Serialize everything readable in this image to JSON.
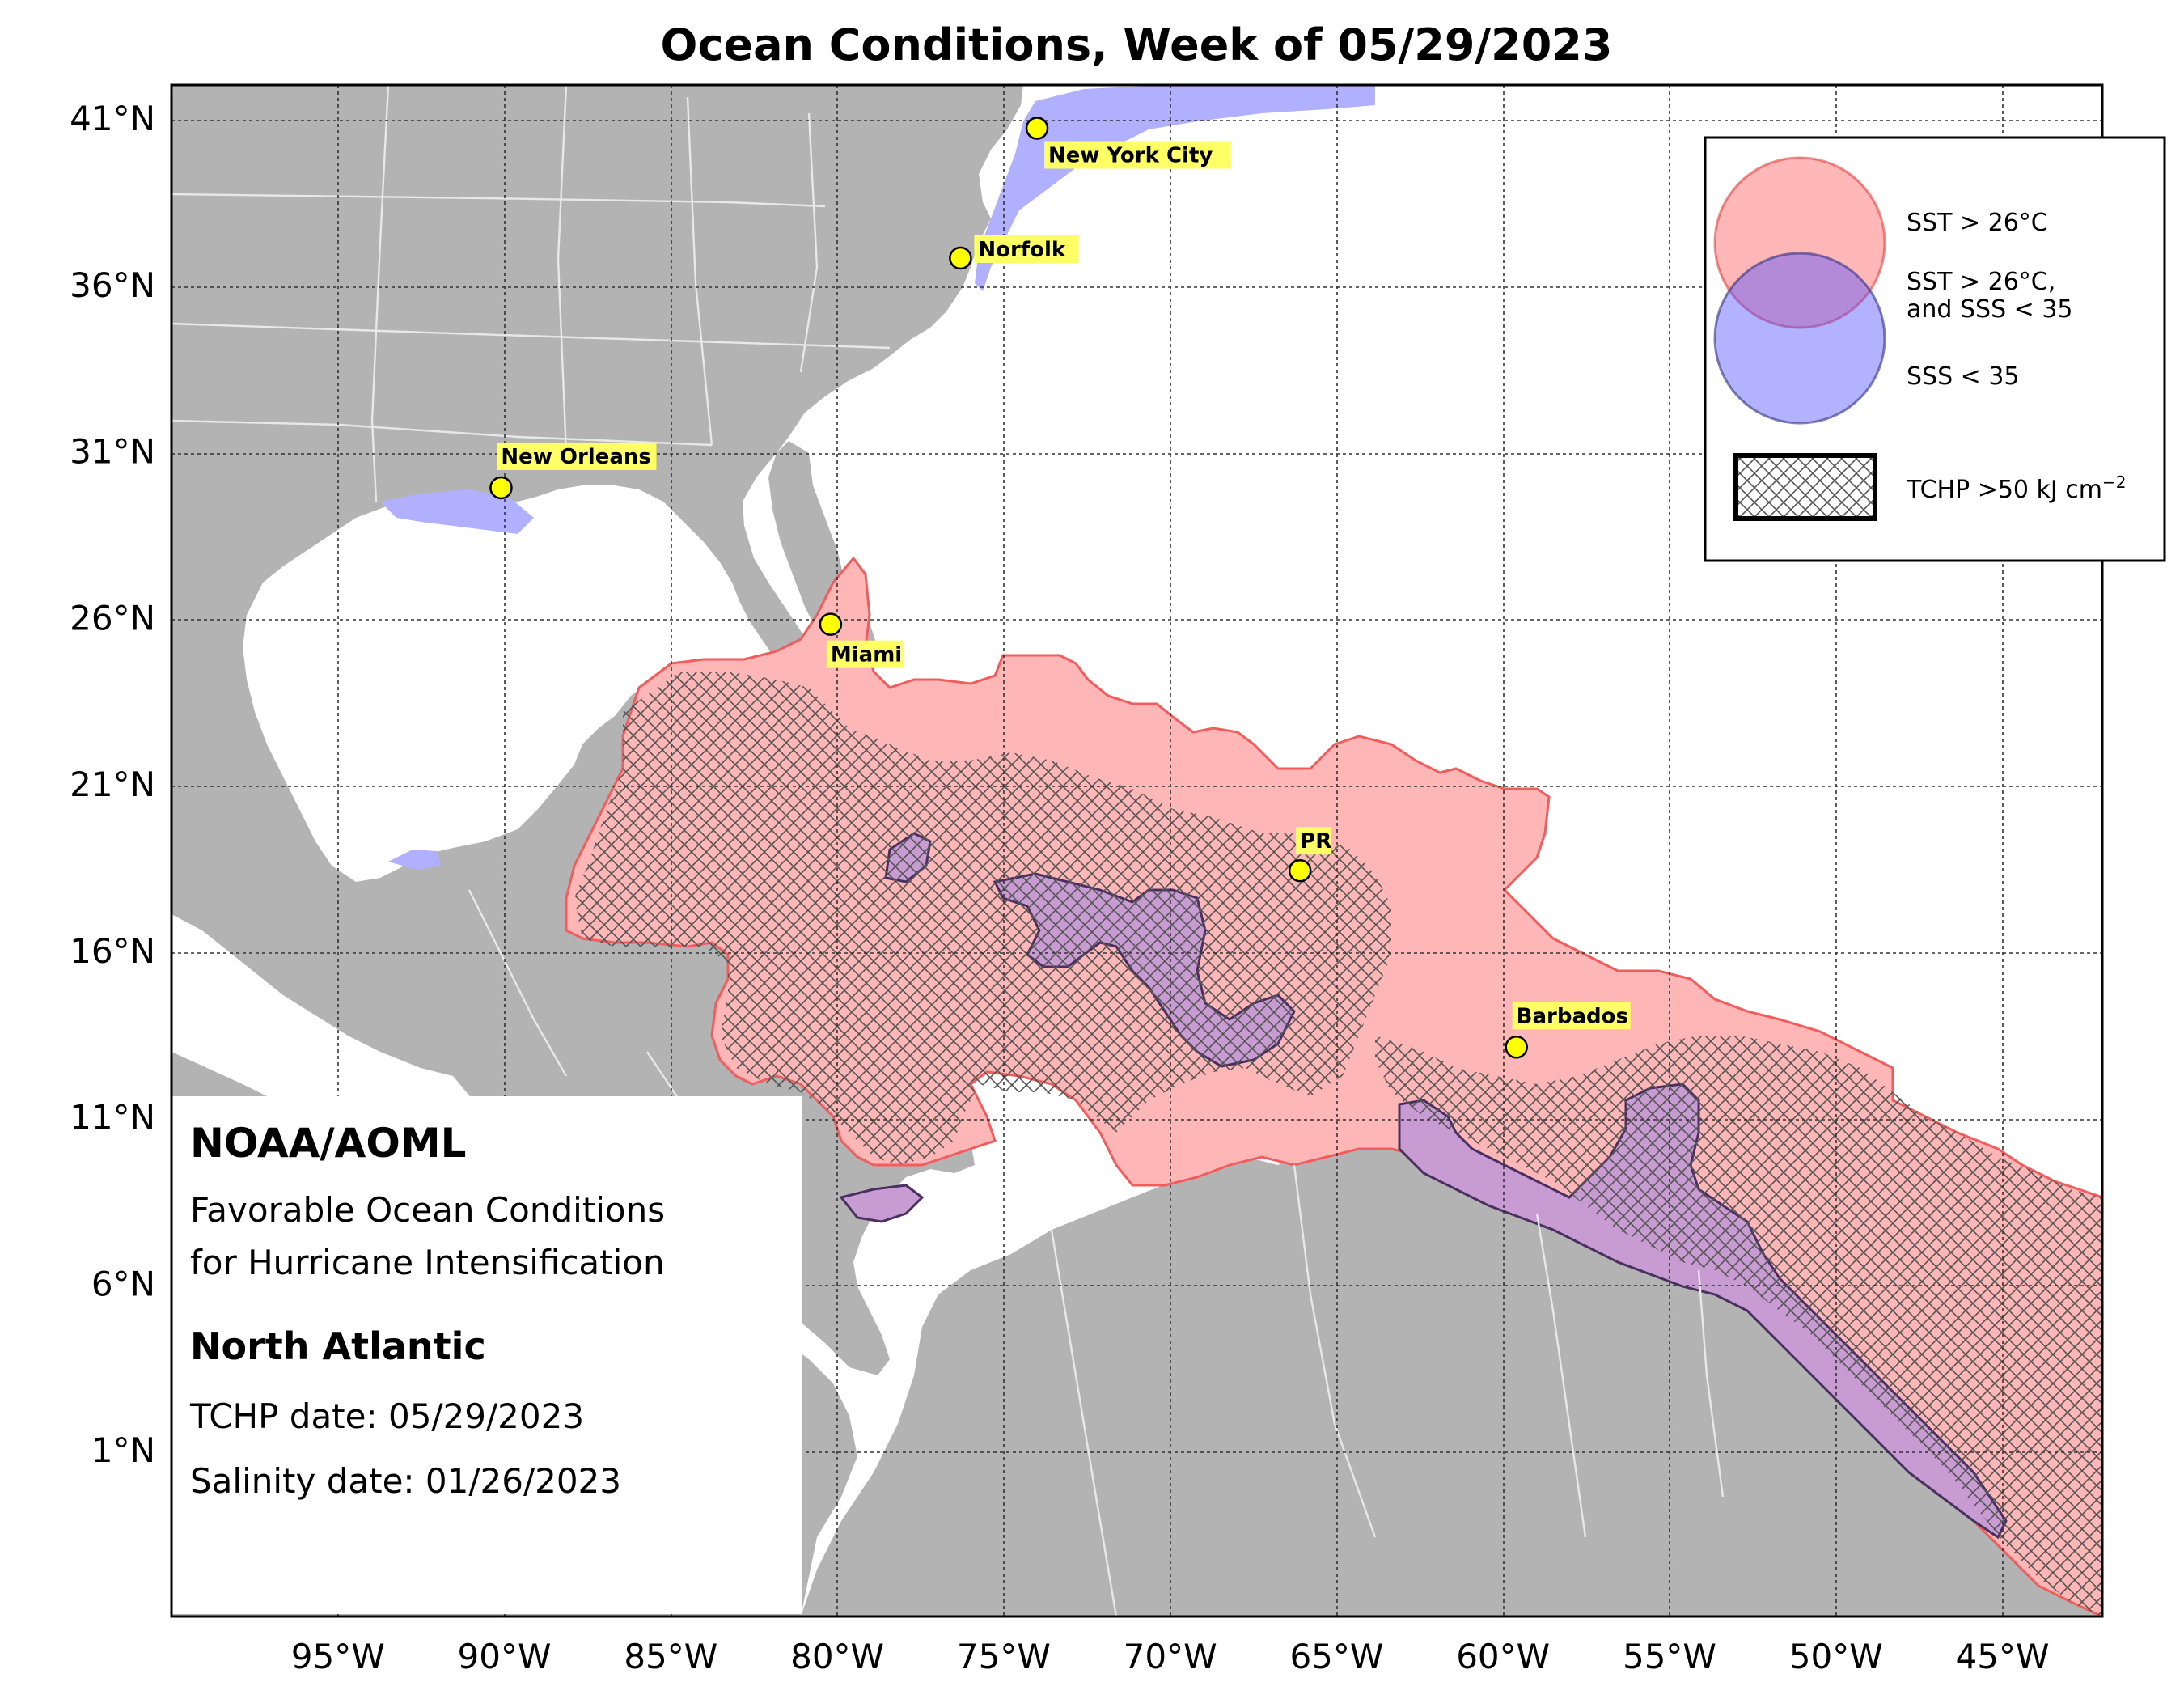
{
  "title": "Ocean Conditions, Week of 05/29/2023",
  "colors": {
    "land": "#b3b3b3",
    "ocean": "#ffffff",
    "sst": "#ffb6b6",
    "sst_edge": "#f25c5c",
    "sss": "#b0b0ff",
    "both": "#c99bd3",
    "both_edge": "#4a3060",
    "city_marker": "#ffff00",
    "label_bg": "#ffff66"
  },
  "axes": {
    "lon_ticks": [
      "95°W",
      "90°W",
      "85°W",
      "80°W",
      "75°W",
      "70°W",
      "65°W",
      "60°W",
      "55°W",
      "50°W",
      "45°W"
    ],
    "lat_ticks": [
      "41°N",
      "36°N",
      "31°N",
      "26°N",
      "21°N",
      "16°N",
      "11°N",
      "6°N",
      "1°N"
    ]
  },
  "map_data": {
    "lon_range": [
      -100,
      -42
    ],
    "lat_range": [
      -4,
      42
    ]
  },
  "cities": [
    {
      "name": "New York City",
      "lon": -74.0,
      "lat": 40.7
    },
    {
      "name": "Norfolk",
      "lon": -76.3,
      "lat": 36.8
    },
    {
      "name": "New Orleans",
      "lon": -90.1,
      "lat": 29.9
    },
    {
      "name": "Miami",
      "lon": -80.2,
      "lat": 25.8
    },
    {
      "name": "PR",
      "lon": -66.1,
      "lat": 18.4
    },
    {
      "name": "Barbados",
      "lon": -59.6,
      "lat": 13.1
    }
  ],
  "legend": {
    "sst_label": "SST > 26°C",
    "both_label_line1": "SST > 26°C,",
    "both_label_line2": "and SSS < 35",
    "sss_label": "SSS < 35",
    "tchp_label": "TCHP >50 kJ cm",
    "tchp_exponent": "−2"
  },
  "info": {
    "org": "NOAA/AOML",
    "desc_line1": "Favorable Ocean Conditions",
    "desc_line2": "for Hurricane Intensification",
    "region": "North Atlantic",
    "tchp_date": "TCHP date: 05/29/2023",
    "salinity_date": "Salinity date: 01/26/2023"
  }
}
